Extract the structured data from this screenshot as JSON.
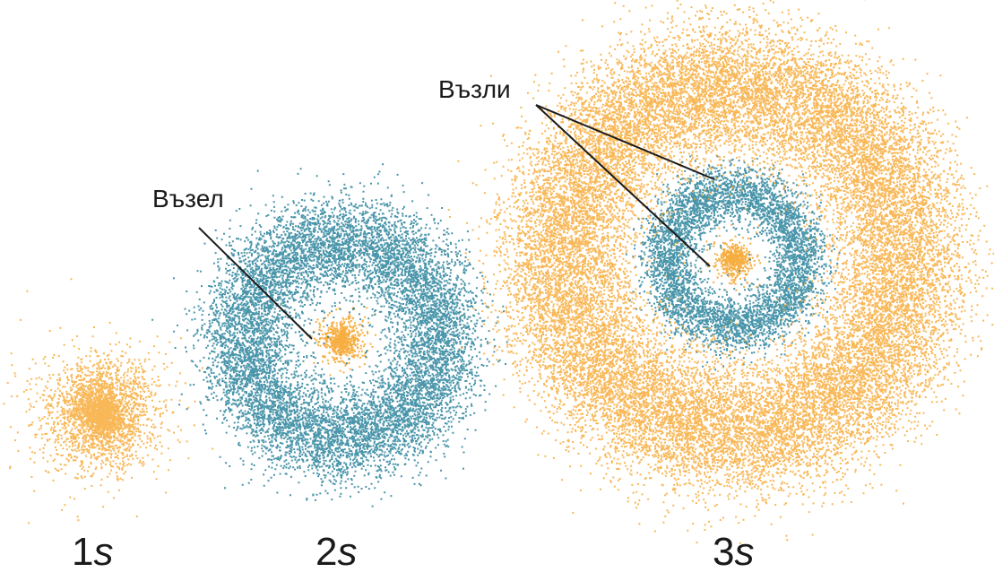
{
  "colors": {
    "orange": "#f5a020",
    "teal": "#1c7a95",
    "text": "#1a1a1a"
  },
  "orbitals": [
    {
      "id": "1s",
      "number": "1",
      "letter": "s",
      "regions": [
        {
          "color": "orange",
          "shape": "gaussian-core"
        }
      ]
    },
    {
      "id": "2s",
      "number": "2",
      "letter": "s",
      "regions": [
        {
          "color": "orange",
          "shape": "core"
        },
        {
          "color": "teal",
          "shape": "ring"
        }
      ]
    },
    {
      "id": "3s",
      "number": "3",
      "letter": "s",
      "regions": [
        {
          "color": "orange",
          "shape": "core"
        },
        {
          "color": "teal",
          "shape": "ring"
        },
        {
          "color": "orange",
          "shape": "ring"
        }
      ]
    }
  ],
  "annotations": {
    "node_single": "Възел",
    "node_plural": "Възли"
  }
}
